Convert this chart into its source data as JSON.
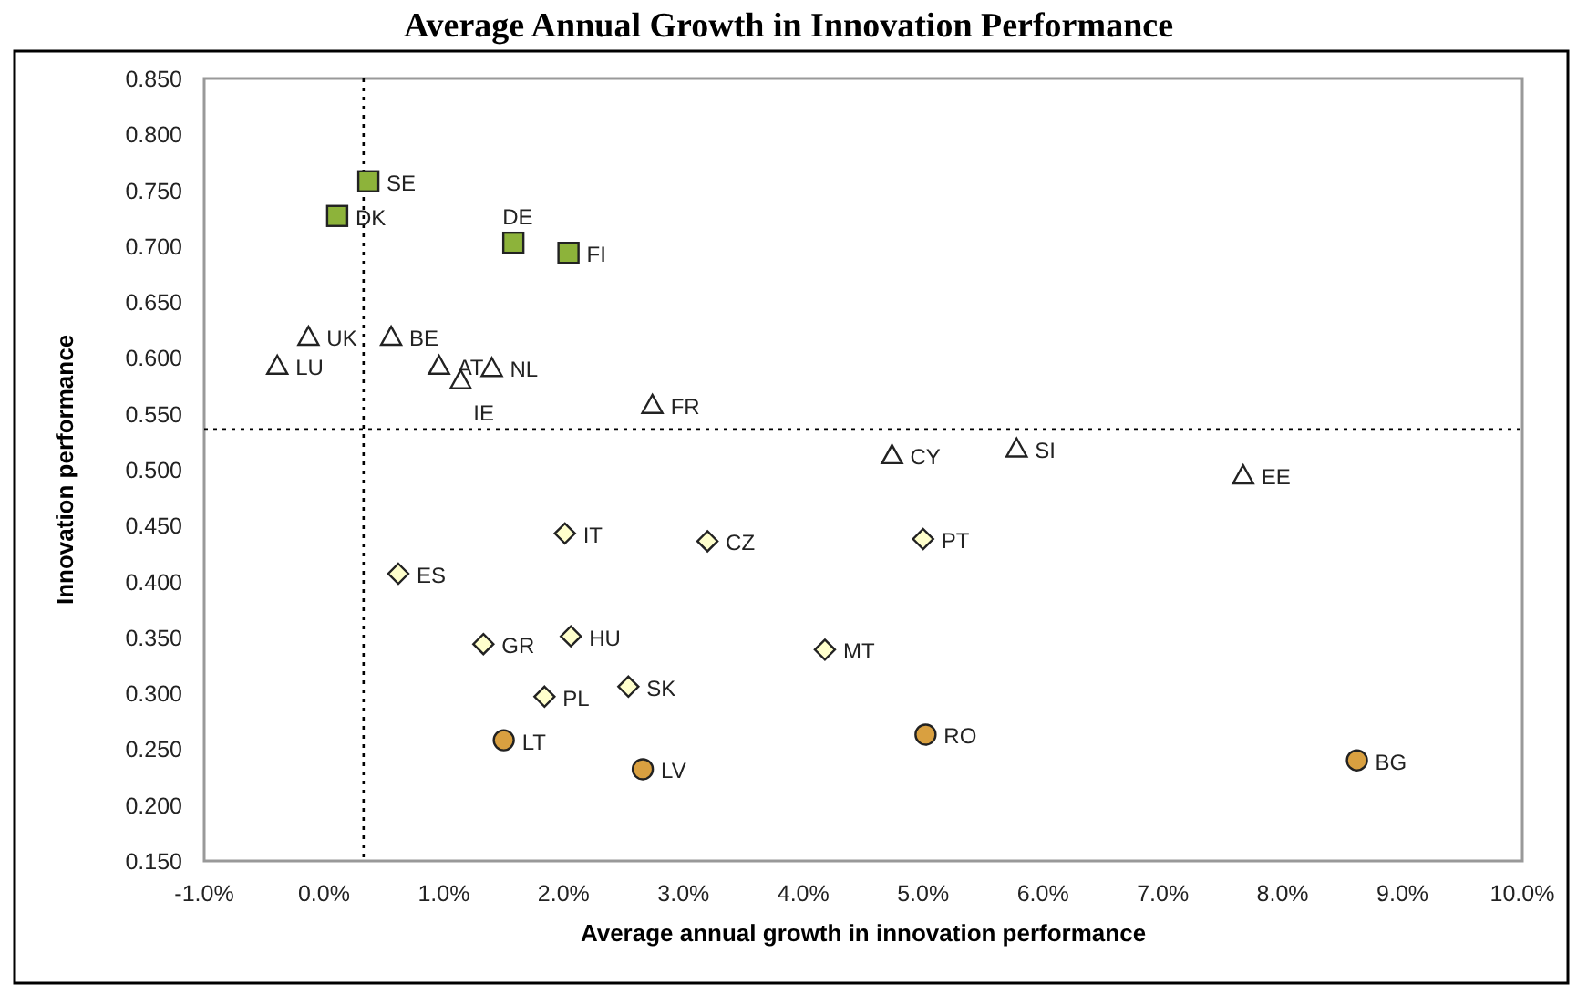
{
  "chart_data": {
    "type": "scatter",
    "title": "Average Annual Growth in Innovation Performance",
    "xlabel": "Average annual growth in innovation performance",
    "ylabel": "Innovation performance",
    "xlim": [
      -1,
      10
    ],
    "xticks": [
      {
        "value": -1,
        "label": "-1.0%"
      },
      {
        "value": 0,
        "label": "0.0%"
      },
      {
        "value": 1,
        "label": "1.0%"
      },
      {
        "value": 2,
        "label": "2.0%"
      },
      {
        "value": 3,
        "label": "3.0%"
      },
      {
        "value": 4,
        "label": "4.0%"
      },
      {
        "value": 5,
        "label": "5.0%"
      },
      {
        "value": 6,
        "label": "6.0%"
      },
      {
        "value": 7,
        "label": "7.0%"
      },
      {
        "value": 8,
        "label": "8.0%"
      },
      {
        "value": 9,
        "label": "9.0%"
      },
      {
        "value": 10,
        "label": "10.0%"
      }
    ],
    "ylim": [
      0.15,
      0.85
    ],
    "yticks": [
      {
        "value": 0.15,
        "label": "0.150"
      },
      {
        "value": 0.2,
        "label": "0.200"
      },
      {
        "value": 0.25,
        "label": "0.250"
      },
      {
        "value": 0.3,
        "label": "0.300"
      },
      {
        "value": 0.35,
        "label": "0.350"
      },
      {
        "value": 0.4,
        "label": "0.400"
      },
      {
        "value": 0.45,
        "label": "0.450"
      },
      {
        "value": 0.5,
        "label": "0.500"
      },
      {
        "value": 0.55,
        "label": "0.550"
      },
      {
        "value": 0.6,
        "label": "0.600"
      },
      {
        "value": 0.65,
        "label": "0.650"
      },
      {
        "value": 0.7,
        "label": "0.700"
      },
      {
        "value": 0.75,
        "label": "0.750"
      },
      {
        "value": 0.8,
        "label": "0.800"
      },
      {
        "value": 0.85,
        "label": "0.850"
      }
    ],
    "grid": false,
    "series": [
      {
        "color": "#8db33a",
        "marker": "square",
        "x": [
          0.37,
          0.11,
          1.58,
          2.04
        ],
        "values": [
          0.758,
          0.727,
          0.703,
          0.694
        ]
      },
      {
        "color": "#ffffff",
        "marker": "triangle",
        "x": [
          -0.13,
          -0.39,
          0.56,
          0.96,
          1.4,
          1.14,
          2.74,
          4.74,
          5.78,
          7.67
        ],
        "values": [
          0.619,
          0.593,
          0.619,
          0.593,
          0.591,
          0.58,
          0.558,
          0.513,
          0.519,
          0.495
        ]
      },
      {
        "color": "#ffffcc",
        "marker": "diamond",
        "x": [
          2.01,
          3.2,
          0.62,
          1.33,
          2.06,
          1.84,
          2.54,
          5.0,
          4.18
        ],
        "values": [
          0.443,
          0.436,
          0.407,
          0.344,
          0.351,
          0.297,
          0.306,
          0.438,
          0.339
        ]
      },
      {
        "color": "#d9a040",
        "marker": "circle",
        "x": [
          1.5,
          2.66,
          5.02,
          8.62
        ],
        "values": [
          0.258,
          0.232,
          0.263,
          0.24
        ]
      }
    ],
    "ref_lines": [
      {
        "axis": "x",
        "value": 0.33,
        "line_style": "dotted",
        "color": "#000000"
      },
      {
        "axis": "y",
        "value": 0.536,
        "line_style": "dotted",
        "color": "#000000"
      }
    ],
    "annotations": [
      {
        "text": "SE",
        "x": 0.37,
        "y": 0.758
      },
      {
        "text": "DK",
        "x": 0.11,
        "y": 0.727
      },
      {
        "text": "DE",
        "x": 1.58,
        "y": 0.703
      },
      {
        "text": "FI",
        "x": 2.04,
        "y": 0.694
      },
      {
        "text": "UK",
        "x": -0.13,
        "y": 0.619
      },
      {
        "text": "LU",
        "x": -0.39,
        "y": 0.593
      },
      {
        "text": "BE",
        "x": 0.56,
        "y": 0.619
      },
      {
        "text": "AT",
        "x": 0.96,
        "y": 0.593
      },
      {
        "text": "NL",
        "x": 1.4,
        "y": 0.591
      },
      {
        "text": "IE",
        "x": 1.14,
        "y": 0.58
      },
      {
        "text": "FR",
        "x": 2.74,
        "y": 0.558
      },
      {
        "text": "CY",
        "x": 4.74,
        "y": 0.513
      },
      {
        "text": "SI",
        "x": 5.78,
        "y": 0.519
      },
      {
        "text": "EE",
        "x": 7.67,
        "y": 0.495
      },
      {
        "text": "IT",
        "x": 2.01,
        "y": 0.443
      },
      {
        "text": "CZ",
        "x": 3.2,
        "y": 0.436
      },
      {
        "text": "ES",
        "x": 0.62,
        "y": 0.407
      },
      {
        "text": "GR",
        "x": 1.33,
        "y": 0.344
      },
      {
        "text": "HU",
        "x": 2.06,
        "y": 0.351
      },
      {
        "text": "PL",
        "x": 1.84,
        "y": 0.297
      },
      {
        "text": "SK",
        "x": 2.54,
        "y": 0.306
      },
      {
        "text": "PT",
        "x": 5.0,
        "y": 0.438
      },
      {
        "text": "MT",
        "x": 4.18,
        "y": 0.339
      },
      {
        "text": "LT",
        "x": 1.5,
        "y": 0.258
      },
      {
        "text": "LV",
        "x": 2.66,
        "y": 0.232
      },
      {
        "text": "RO",
        "x": 5.02,
        "y": 0.263
      },
      {
        "text": "BG",
        "x": 8.62,
        "y": 0.24
      }
    ]
  }
}
